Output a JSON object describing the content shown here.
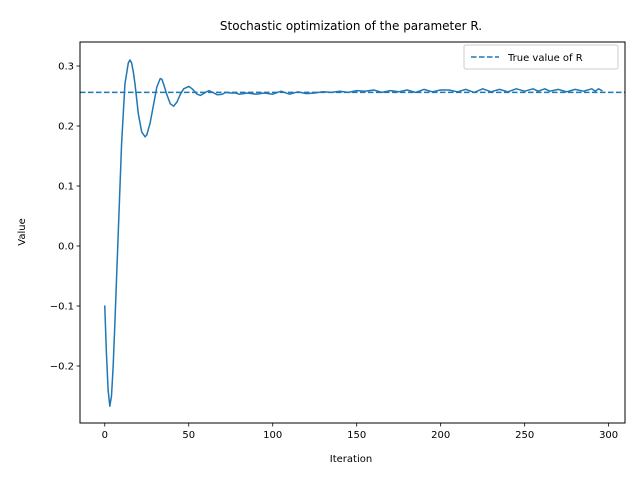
{
  "chart_data": {
    "type": "line",
    "title": "Stochastic optimization of the parameter R.",
    "xlabel": "Iteration",
    "ylabel": "Value",
    "xlim": [
      -14.75,
      309.75
    ],
    "ylim": [
      -0.295,
      0.34
    ],
    "xticks": [
      0,
      50,
      100,
      150,
      200,
      250,
      300
    ],
    "xtick_labels": [
      "0",
      "50",
      "100",
      "150",
      "200",
      "250",
      "300"
    ],
    "yticks": [
      -0.2,
      -0.1,
      0.0,
      0.1,
      0.2,
      0.3
    ],
    "ytick_labels": [
      "−0.2",
      "−0.1",
      "0.0",
      "0.1",
      "0.2",
      "0.3"
    ],
    "grid": false,
    "legend": {
      "location": "upper right",
      "entries": [
        "True value of R"
      ]
    },
    "hline": {
      "y": 0.256,
      "style": "dashed",
      "label": "True value of R"
    },
    "series": [
      {
        "color": "#1f77b4",
        "x": [
          0,
          1,
          2,
          3,
          4,
          5,
          6,
          8,
          10,
          12,
          14,
          15,
          16,
          17,
          18,
          19,
          20,
          22,
          24,
          25,
          27,
          29,
          31,
          33,
          34,
          35,
          37,
          39,
          41,
          43,
          45,
          47,
          50,
          52,
          55,
          57,
          60,
          62,
          65,
          67,
          70,
          72,
          75,
          78,
          80,
          85,
          90,
          95,
          100,
          105,
          110,
          115,
          120,
          125,
          130,
          135,
          140,
          145,
          150,
          155,
          160,
          165,
          170,
          175,
          180,
          185,
          190,
          195,
          200,
          205,
          210,
          215,
          220,
          225,
          230,
          235,
          240,
          245,
          250,
          255,
          258,
          262,
          265,
          270,
          275,
          280,
          285,
          290,
          292,
          294,
          296
        ],
        "y": [
          -0.1,
          -0.18,
          -0.24,
          -0.267,
          -0.25,
          -0.2,
          -0.13,
          0.02,
          0.17,
          0.27,
          0.305,
          0.31,
          0.305,
          0.29,
          0.27,
          0.245,
          0.22,
          0.19,
          0.182,
          0.185,
          0.205,
          0.235,
          0.265,
          0.279,
          0.278,
          0.27,
          0.252,
          0.237,
          0.233,
          0.24,
          0.253,
          0.262,
          0.266,
          0.262,
          0.253,
          0.251,
          0.256,
          0.259,
          0.255,
          0.252,
          0.253,
          0.256,
          0.255,
          0.255,
          0.253,
          0.255,
          0.253,
          0.255,
          0.253,
          0.258,
          0.253,
          0.257,
          0.254,
          0.255,
          0.257,
          0.256,
          0.258,
          0.256,
          0.259,
          0.258,
          0.26,
          0.256,
          0.259,
          0.257,
          0.26,
          0.256,
          0.261,
          0.257,
          0.26,
          0.26,
          0.257,
          0.261,
          0.256,
          0.262,
          0.257,
          0.261,
          0.257,
          0.262,
          0.258,
          0.262,
          0.258,
          0.262,
          0.258,
          0.261,
          0.257,
          0.261,
          0.258,
          0.262,
          0.258,
          0.262,
          0.259
        ]
      }
    ]
  }
}
